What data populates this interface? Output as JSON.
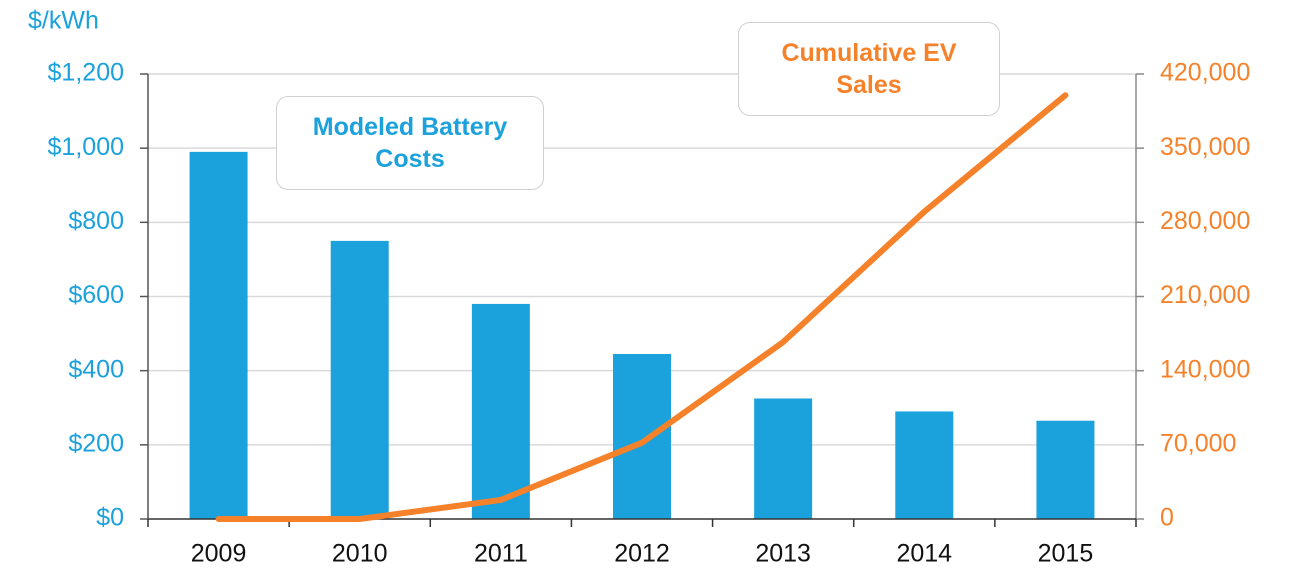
{
  "chart_data": {
    "type": "bar_line",
    "y_axis_label": "$/kWh",
    "categories": [
      "2009",
      "2010",
      "2011",
      "2012",
      "2013",
      "2014",
      "2015"
    ],
    "series": [
      {
        "name": "Modeled Battery Costs",
        "type": "bar",
        "color": "#1ba1db",
        "values": [
          990,
          750,
          580,
          445,
          325,
          290,
          265
        ]
      },
      {
        "name": "Cumulative EV Sales",
        "type": "line",
        "axis": "y2",
        "color": "#f5822a",
        "values": [
          0,
          0,
          18000,
          72000,
          167000,
          290000,
          400000
        ]
      }
    ],
    "ylim": [
      0,
      1200
    ],
    "yticks": [
      {
        "value": 0,
        "label": "$0"
      },
      {
        "value": 200,
        "label": "$200"
      },
      {
        "value": 400,
        "label": "$400"
      },
      {
        "value": 600,
        "label": "$600"
      },
      {
        "value": 800,
        "label": "$800"
      },
      {
        "value": 1000,
        "label": "$1,000"
      },
      {
        "value": 1200,
        "label": "$1,200"
      }
    ],
    "y2lim": [
      0,
      420000
    ],
    "y2ticks": [
      0,
      {
        "value": 70000,
        "label": "70,000"
      },
      {
        "value": 140000,
        "label": "140,000"
      },
      {
        "value": 210000,
        "label": "210,000"
      },
      {
        "value": 280000,
        "label": "280,000"
      },
      {
        "value": 350000,
        "label": "350,000"
      },
      {
        "value": 420000,
        "label": "420,000"
      }
    ],
    "grid": true
  }
}
